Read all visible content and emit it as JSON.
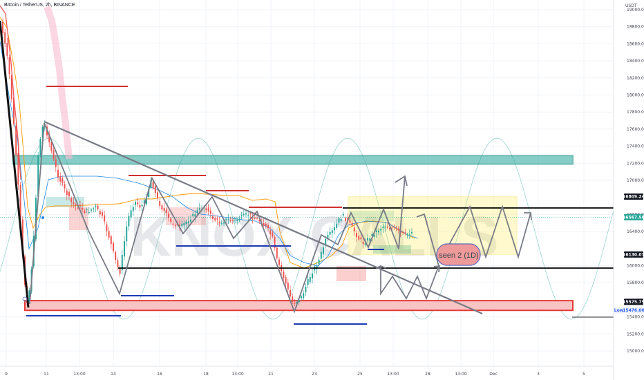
{
  "header": {
    "title": "Bitcoin / TetherUS, 2h, BINANCE"
  },
  "watermark": "KNOX CALLS",
  "annotation": "seen 2 (1D)",
  "colors": {
    "up": "#26a69a",
    "down": "#ef5350",
    "green_zone": "#26a69a",
    "red_zone": "#ef5350",
    "yellow_zone": "#ffeb3b",
    "pattern": "#787b86",
    "sine": "#80cbc4",
    "support": "#2962ff"
  },
  "chart_data": {
    "type": "candlestick",
    "title": "Bitcoin / TetherUS, 2h, BINANCE",
    "y_unit": "USDT",
    "ylim": [
      15000,
      19300
    ],
    "x_tick_labels": [
      "9",
      "11",
      "13:00",
      "14",
      "16",
      "18",
      "13:00",
      "21",
      "23",
      "25",
      "13:00",
      "28",
      "13:00",
      "Dec",
      "3",
      "5"
    ],
    "y_tick_labels": [
      "19000.00",
      "18800.00",
      "18600.00",
      "18400.00",
      "18200.00",
      "18000.00",
      "17800.00",
      "17600.00",
      "17400.00",
      "17200.00",
      "17000.00",
      "16600.00",
      "16400.00",
      "16000.00",
      "15800.00",
      "15400.00",
      "15200.00",
      "15000.00"
    ],
    "price_badges": [
      {
        "label": "16809.24",
        "value": 16809.24,
        "style": "dark"
      },
      {
        "label": "16567.56",
        "value": 16567.56,
        "style": "last"
      },
      {
        "label": "16130.07",
        "value": 16130.07,
        "style": "dark"
      },
      {
        "label": "15575.75",
        "value": 15575.75,
        "style": "dark"
      },
      {
        "label": "Low",
        "value": 15476,
        "style": "low"
      },
      {
        "label": "15476.00",
        "value": 15476,
        "style": "low"
      }
    ],
    "zones": [
      {
        "name": "resistance",
        "ymin": 17190,
        "ymax": 17290
      },
      {
        "name": "support",
        "ymin": 15476,
        "ymax": 15590
      },
      {
        "name": "range",
        "ymin": 16130,
        "ymax": 16809
      }
    ]
  }
}
